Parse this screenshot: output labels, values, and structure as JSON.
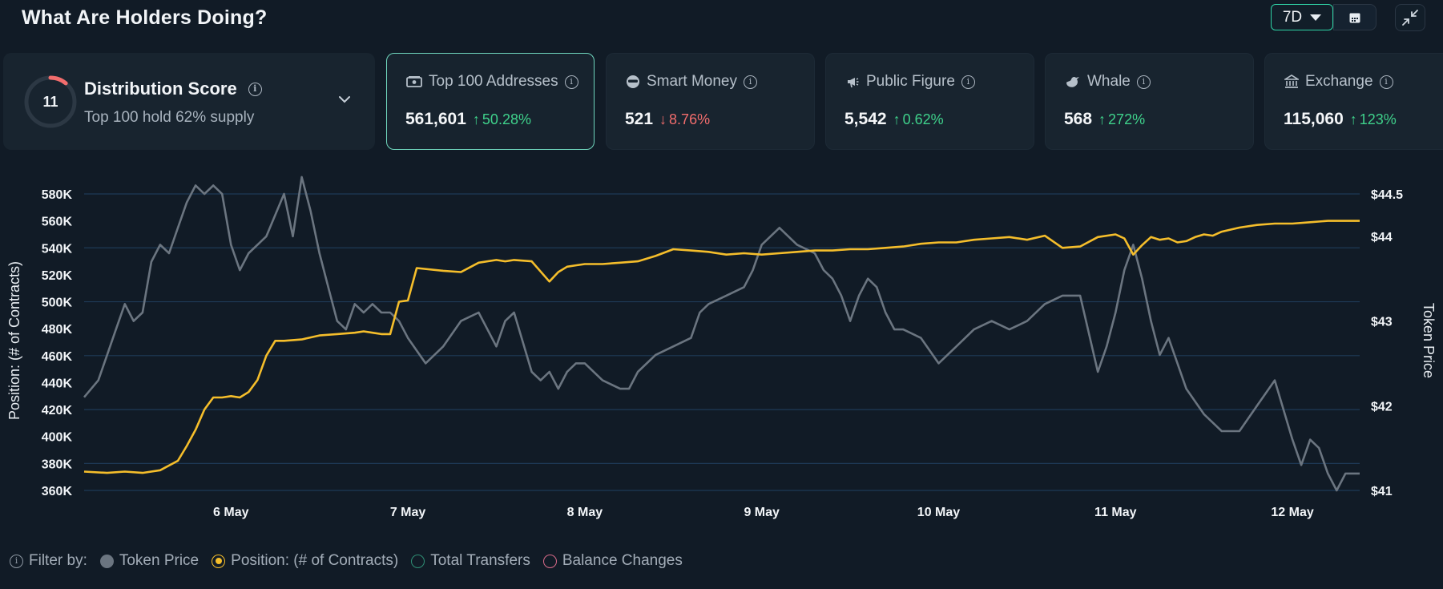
{
  "header": {
    "title": "What Are Holders Doing?",
    "range_label": "7D",
    "icons": [
      "caret-down-icon",
      "calendar-icon",
      "collapse-icon"
    ]
  },
  "distribution": {
    "score": "11",
    "title": "Distribution Score",
    "subtitle": "Top 100 hold 62% supply",
    "score_fraction": 0.11,
    "icons": [
      "info-icon",
      "chevron-down-icon"
    ]
  },
  "cards": [
    {
      "label": "Top 100 Addresses",
      "icon": "money-icon",
      "value": "561,601",
      "change": "50.28%",
      "direction": "up"
    },
    {
      "label": "Smart Money",
      "icon": "sunglasses-icon",
      "value": "521",
      "change": "8.76%",
      "direction": "down"
    },
    {
      "label": "Public Figure",
      "icon": "megaphone-icon",
      "value": "5,542",
      "change": "0.62%",
      "direction": "up"
    },
    {
      "label": "Whale",
      "icon": "whale-icon",
      "value": "568",
      "change": "272%",
      "direction": "up"
    },
    {
      "label": "Exchange",
      "icon": "bank-icon",
      "value": "115,060",
      "change": "123%",
      "direction": "up"
    }
  ],
  "legend": {
    "filter_label": "Filter by:",
    "items": [
      {
        "label": "Token Price",
        "color": "#6b7580",
        "active": true
      },
      {
        "label": "Position: (# of Contracts)",
        "color": "#f5be2b",
        "active": true
      },
      {
        "label": "Total Transfers",
        "color": "#2f8f75",
        "active": false
      },
      {
        "label": "Balance Changes",
        "color": "#d96b8a",
        "active": false
      }
    ]
  },
  "colors": {
    "accent": "#2fd3a6",
    "up": "#3fd18b",
    "down": "#f26d6d",
    "position_line": "#f5be2b",
    "price_line": "#6b7580",
    "grid": "#1e3a57"
  },
  "chart_data": {
    "type": "line",
    "ylabel": "Position: (# of Contracts)",
    "y2label": "Token Price",
    "ylim": [
      360000,
      580000
    ],
    "y2lim": [
      41,
      44.5
    ],
    "y_ticks": [
      "580K",
      "560K",
      "540K",
      "520K",
      "500K",
      "480K",
      "460K",
      "440K",
      "420K",
      "400K",
      "380K",
      "360K"
    ],
    "y2_ticks": [
      "$44.5",
      "$44",
      "$43",
      "$42",
      "$41"
    ],
    "x_ticks": [
      "6 May",
      "7 May",
      "8 May",
      "9 May",
      "10 May",
      "11 May",
      "12 May"
    ],
    "x_range": [
      5.17,
      12.38
    ],
    "grid": true,
    "series": [
      {
        "name": "Position: (# of Contracts)",
        "axis": "left",
        "x": [
          5.17,
          5.3,
          5.4,
          5.5,
          5.6,
          5.7,
          5.75,
          5.8,
          5.85,
          5.9,
          5.95,
          6.0,
          6.05,
          6.1,
          6.15,
          6.2,
          6.25,
          6.3,
          6.4,
          6.5,
          6.6,
          6.7,
          6.75,
          6.8,
          6.85,
          6.9,
          6.95,
          7.0,
          7.05,
          7.2,
          7.3,
          7.4,
          7.5,
          7.55,
          7.6,
          7.7,
          7.8,
          7.85,
          7.9,
          7.95,
          8.0,
          8.1,
          8.2,
          8.3,
          8.4,
          8.5,
          8.6,
          8.7,
          8.8,
          8.9,
          9.0,
          9.1,
          9.2,
          9.3,
          9.4,
          9.5,
          9.6,
          9.7,
          9.8,
          9.9,
          10.0,
          10.1,
          10.2,
          10.3,
          10.4,
          10.5,
          10.6,
          10.7,
          10.8,
          10.9,
          11.0,
          11.05,
          11.1,
          11.15,
          11.2,
          11.25,
          11.3,
          11.35,
          11.4,
          11.45,
          11.5,
          11.55,
          11.6,
          11.7,
          11.8,
          11.9,
          12.0,
          12.1,
          12.2,
          12.3,
          12.38
        ],
        "y": [
          374000,
          373000,
          374000,
          373000,
          375000,
          382000,
          393000,
          405000,
          420000,
          429000,
          429000,
          430000,
          429000,
          433000,
          442000,
          460000,
          471000,
          471000,
          472000,
          475000,
          476000,
          477000,
          478000,
          477000,
          476000,
          476000,
          500000,
          501000,
          525000,
          523000,
          522000,
          529000,
          531000,
          530000,
          531000,
          530000,
          515000,
          522000,
          526000,
          527000,
          528000,
          528000,
          529000,
          530000,
          534000,
          539000,
          538000,
          537000,
          535000,
          536000,
          535000,
          536000,
          537000,
          538000,
          538000,
          539000,
          539000,
          540000,
          541000,
          543000,
          544000,
          544000,
          546000,
          547000,
          548000,
          546000,
          549000,
          540000,
          541000,
          548000,
          550000,
          547000,
          535000,
          542000,
          548000,
          546000,
          547000,
          544000,
          545000,
          548000,
          550000,
          549000,
          552000,
          555000,
          557000,
          558000,
          558000,
          559000,
          560000,
          560000,
          560000
        ]
      },
      {
        "name": "Token Price",
        "axis": "right",
        "x": [
          5.17,
          5.25,
          5.3,
          5.35,
          5.4,
          5.45,
          5.5,
          5.55,
          5.6,
          5.65,
          5.7,
          5.75,
          5.8,
          5.85,
          5.9,
          5.95,
          6.0,
          6.05,
          6.1,
          6.15,
          6.2,
          6.3,
          6.35,
          6.4,
          6.45,
          6.5,
          6.55,
          6.6,
          6.65,
          6.7,
          6.75,
          6.8,
          6.85,
          6.9,
          6.95,
          7.0,
          7.1,
          7.2,
          7.3,
          7.4,
          7.5,
          7.55,
          7.6,
          7.7,
          7.75,
          7.8,
          7.85,
          7.9,
          7.95,
          8.0,
          8.1,
          8.2,
          8.25,
          8.3,
          8.4,
          8.5,
          8.6,
          8.65,
          8.7,
          8.8,
          8.9,
          8.95,
          9.0,
          9.05,
          9.1,
          9.2,
          9.3,
          9.35,
          9.4,
          9.45,
          9.5,
          9.55,
          9.6,
          9.65,
          9.7,
          9.75,
          9.8,
          9.9,
          10.0,
          10.1,
          10.2,
          10.3,
          10.4,
          10.5,
          10.6,
          10.7,
          10.8,
          10.9,
          10.95,
          11.0,
          11.05,
          11.1,
          11.15,
          11.2,
          11.25,
          11.3,
          11.4,
          11.5,
          11.55,
          11.6,
          11.7,
          11.8,
          11.9,
          12.0,
          12.05,
          12.1,
          12.15,
          12.2,
          12.25,
          12.3,
          12.38
        ],
        "y": [
          42.1,
          42.3,
          42.6,
          42.9,
          43.2,
          43.0,
          43.1,
          43.7,
          43.9,
          43.8,
          44.1,
          44.4,
          44.6,
          44.5,
          44.6,
          44.5,
          43.9,
          43.6,
          43.8,
          43.9,
          44.0,
          44.5,
          44.0,
          44.7,
          44.3,
          43.8,
          43.4,
          43.0,
          42.9,
          43.2,
          43.1,
          43.2,
          43.1,
          43.1,
          43.0,
          42.8,
          42.5,
          42.7,
          43.0,
          43.1,
          42.7,
          43.0,
          43.1,
          42.4,
          42.3,
          42.4,
          42.2,
          42.4,
          42.5,
          42.5,
          42.3,
          42.2,
          42.2,
          42.4,
          42.6,
          42.7,
          42.8,
          43.1,
          43.2,
          43.3,
          43.4,
          43.6,
          43.9,
          44.0,
          44.1,
          43.9,
          43.8,
          43.6,
          43.5,
          43.3,
          43.0,
          43.3,
          43.5,
          43.4,
          43.1,
          42.9,
          42.9,
          42.8,
          42.5,
          42.7,
          42.9,
          43.0,
          42.9,
          43.0,
          43.2,
          43.3,
          43.3,
          42.4,
          42.7,
          43.1,
          43.6,
          43.9,
          43.5,
          43.0,
          42.6,
          42.8,
          42.2,
          41.9,
          41.8,
          41.7,
          41.7,
          42.0,
          42.3,
          41.6,
          41.3,
          41.6,
          41.5,
          41.2,
          41.0,
          41.2,
          41.2
        ]
      }
    ]
  }
}
